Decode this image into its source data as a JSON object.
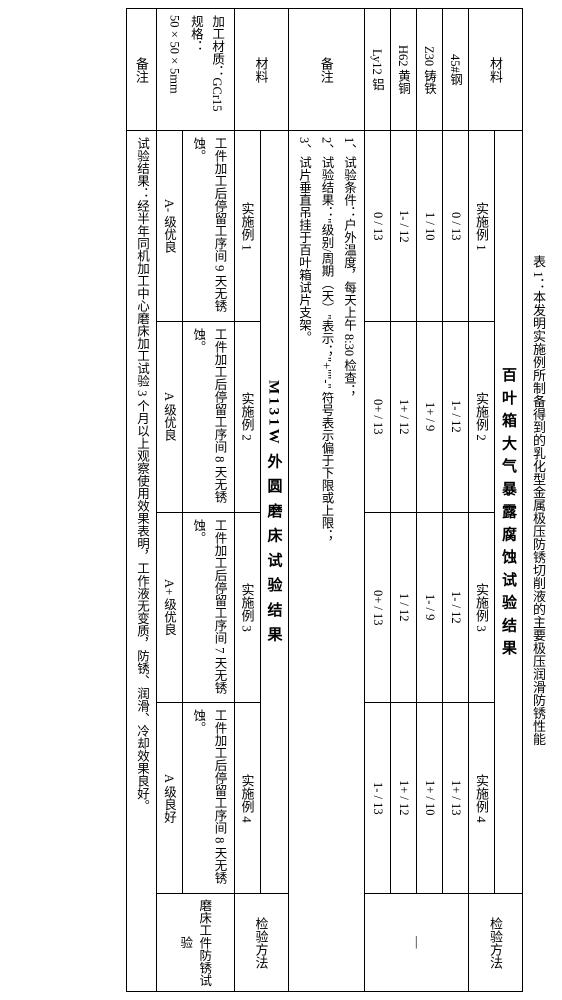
{
  "caption": "表 1：本发明实施例所制备得到的乳化型金属极压防锈切削液的主要极压润滑防锈性能",
  "t1": {
    "title": "百 叶 箱 大 气 暴 露 腐 蚀 试 验 结 果",
    "col_material": "材料",
    "cols": [
      "实施例 1",
      "实施例 2",
      "实施例 3",
      "实施例 4"
    ],
    "col_method": "检验方法",
    "rows": [
      {
        "m": "45#钢",
        "v": [
          "0 / 13",
          "1- / 12",
          "1- / 12",
          "1+ / 13"
        ]
      },
      {
        "m": "Z30 铸铁",
        "v": [
          "1 / 10",
          "1+ / 9",
          "1- / 9",
          "1+ / 10"
        ]
      },
      {
        "m": "H62 黄铜",
        "v": [
          "1- / 12",
          "1+ / 12",
          "1 / 12",
          "1+ / 12"
        ]
      },
      {
        "m": "Ly12 铝",
        "v": [
          "0 / 13",
          "0+ / 13",
          "0+ / 13",
          "1- / 13"
        ]
      }
    ],
    "method_dash": "—"
  },
  "notes1": {
    "label": "备注",
    "l1": "1、试验条件：户外温度，每天上午 8:30 检查；",
    "l2": "2、试验结果：\"级别/周期（天）\"表示；\"+\"\"-\" 符号表示偏于下限或上限；",
    "l3": "3、试片垂直吊挂于百叶箱试片支架。"
  },
  "t2": {
    "title": "M131W 外 圆 磨 床 试 验 结 果",
    "col_material": "材料",
    "cols": [
      "实施例 1",
      "实施例 2",
      "实施例 3",
      "实施例 4"
    ],
    "col_method": "检验方法",
    "mat_l1": "加工材质：GCr15",
    "mat_l2": "规格：50×50×5mm",
    "rows": [
      {
        "v": [
          "工件加工后停留工序间 9 天无锈蚀。",
          "工件加工后停留工序间 8 天无锈蚀。",
          "工件加工后停留工序间 7 天无锈蚀。",
          "工件加工后停留工序间 8 天无锈蚀。"
        ]
      }
    ],
    "grades": [
      "A- 级优良",
      "A 级优良",
      "A+ 级优良",
      "A 级良好"
    ],
    "method": "磨床工件防锈试验"
  },
  "notes2": {
    "label": "备注",
    "text": "试验结果：经半年同机加工中心磨床加工试验 3 个月以上观察使用效果表明，工作液无变质，防锈、润滑、冷却效果良好。"
  }
}
